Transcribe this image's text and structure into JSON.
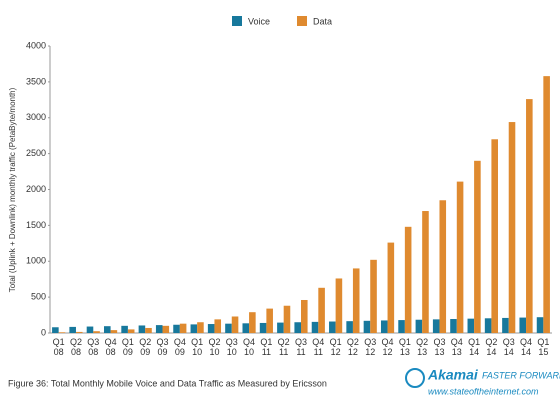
{
  "chart_data": {
    "type": "grouped_bar",
    "y_label": "Total (Uplink + Downlink) monthly traffic (PetaByte/month)",
    "categories": [
      "Q1 08",
      "Q2 08",
      "Q3 08",
      "Q4 08",
      "Q1 09",
      "Q2 09",
      "Q3 09",
      "Q4 09",
      "Q1 10",
      "Q2 10",
      "Q3 10",
      "Q4 10",
      "Q1 11",
      "Q2 11",
      "Q3 11",
      "Q4 11",
      "Q1 12",
      "Q2 12",
      "Q3 12",
      "Q4 12",
      "Q1 13",
      "Q2 13",
      "Q3 13",
      "Q4 13",
      "Q1 14",
      "Q2 14",
      "Q3 14",
      "Q4 14",
      "Q1 15"
    ],
    "series": [
      {
        "name": "Voice",
        "color": "#17789c",
        "values": [
          80,
          85,
          90,
          95,
          100,
          105,
          110,
          115,
          120,
          125,
          130,
          135,
          140,
          145,
          150,
          155,
          160,
          165,
          170,
          175,
          180,
          185,
          190,
          195,
          200,
          205,
          210,
          215,
          220
        ]
      },
      {
        "name": "Data",
        "color": "#df8a2f",
        "values": [
          10,
          15,
          25,
          40,
          50,
          70,
          100,
          130,
          150,
          190,
          230,
          290,
          340,
          380,
          460,
          630,
          760,
          900,
          1020,
          1260,
          1480,
          1700,
          1850,
          2110,
          2400,
          2700,
          2940,
          3260,
          3580
        ]
      }
    ],
    "ylim": [
      0,
      4000
    ],
    "yticks": [
      0,
      500,
      1000,
      1500,
      2000,
      2500,
      3000,
      3500,
      4000
    ],
    "legend": "top",
    "caption": "Figure 36: Total Monthly Mobile Voice and Data Traffic as Measured by Ericsson",
    "logo": {
      "brand": "Akamai",
      "tagline": "FASTER FORWARD",
      "url": "www.stateoftheinternet.com"
    }
  }
}
